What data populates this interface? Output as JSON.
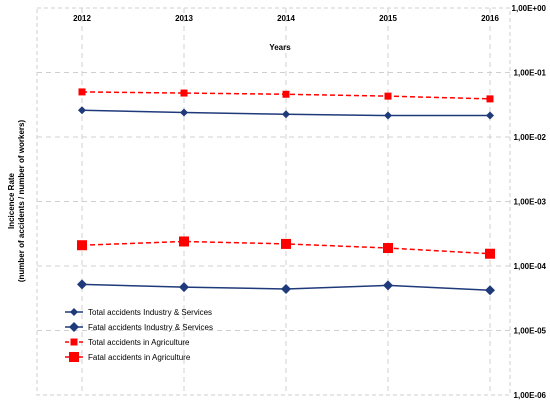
{
  "chart_data": {
    "type": "line",
    "title": "",
    "xlabel": "Years",
    "ylabel": [
      "Incicence Rate",
      "(number of accidents / number of workers)"
    ],
    "x_axis_position": "top",
    "y_axis_position": "right",
    "y_scale": "log",
    "ylim": [
      1e-06,
      1
    ],
    "y_ticks": [
      {
        "value": 1,
        "label": "1,00E+00"
      },
      {
        "value": 0.1,
        "label": "1,00E-01"
      },
      {
        "value": 0.01,
        "label": "1,00E-02"
      },
      {
        "value": 0.001,
        "label": "1,00E-03"
      },
      {
        "value": 0.0001,
        "label": "1,00E-04"
      },
      {
        "value": 1e-05,
        "label": "1,00E-05"
      },
      {
        "value": 1e-06,
        "label": "1,00E-06"
      }
    ],
    "categories": [
      "2012",
      "2013",
      "2014",
      "2015",
      "2016"
    ],
    "grid": true,
    "legend_position": "bottom-left",
    "series": [
      {
        "name": "Total accidents Industry & Services",
        "color": "#1f3a7a",
        "dash": "solid",
        "marker": "diamond-small",
        "values": [
          0.026,
          0.024,
          0.0225,
          0.0215,
          0.0215
        ]
      },
      {
        "name": "Fatal accidents Industry & Services",
        "color": "#1f3a7a",
        "dash": "solid",
        "marker": "diamond",
        "values": [
          5.2e-05,
          4.7e-05,
          4.4e-05,
          5e-05,
          4.2e-05
        ]
      },
      {
        "name": "Total accidents in Agriculture",
        "color": "#ff0000",
        "dash": "dashed",
        "marker": "square-small",
        "values": [
          0.05,
          0.048,
          0.046,
          0.043,
          0.039
        ]
      },
      {
        "name": "Fatal accidents in Agriculture",
        "color": "#ff0000",
        "dash": "dashed",
        "marker": "square",
        "values": [
          0.00021,
          0.00024,
          0.00022,
          0.00019,
          0.000155
        ]
      }
    ]
  }
}
